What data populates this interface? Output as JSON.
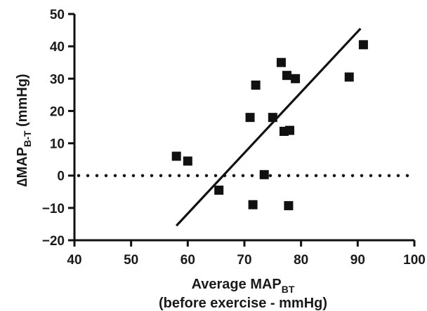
{
  "chart_data": {
    "type": "scatter",
    "title": "",
    "xlabel": {
      "prefix": "Average MAP",
      "subscript": "BT",
      "line2": "(before exercise - mmHg)"
    },
    "ylabel": {
      "delta": "∆",
      "prefix": "MAP",
      "subscript": "B-T",
      "suffix": " (mmHg)"
    },
    "xlim": [
      40,
      100
    ],
    "ylim": [
      -20,
      50
    ],
    "x_ticks": [
      40,
      50,
      60,
      70,
      80,
      90,
      100
    ],
    "y_ticks": [
      -20,
      -10,
      0,
      10,
      20,
      30,
      40,
      50
    ],
    "grid": false,
    "points": [
      {
        "x": 58,
        "y": 6
      },
      {
        "x": 60,
        "y": 4.5
      },
      {
        "x": 65.5,
        "y": -4.5
      },
      {
        "x": 71,
        "y": 18
      },
      {
        "x": 71.5,
        "y": -9
      },
      {
        "x": 72,
        "y": 28
      },
      {
        "x": 73.5,
        "y": 0.3
      },
      {
        "x": 75,
        "y": 18
      },
      {
        "x": 76.5,
        "y": 35
      },
      {
        "x": 77,
        "y": 13.7
      },
      {
        "x": 77.5,
        "y": 31
      },
      {
        "x": 77.8,
        "y": -9.3
      },
      {
        "x": 78,
        "y": 14
      },
      {
        "x": 79,
        "y": 30
      },
      {
        "x": 88.5,
        "y": 30.5
      },
      {
        "x": 91,
        "y": 40.5
      }
    ],
    "regression_line": {
      "x": [
        58,
        90.5
      ],
      "y": [
        -15.5,
        45.5
      ]
    },
    "reference_line": {
      "y": 0,
      "style": "dotted"
    },
    "colors": {
      "marker": "#111111",
      "line": "#111111",
      "axis": "#111111"
    }
  }
}
